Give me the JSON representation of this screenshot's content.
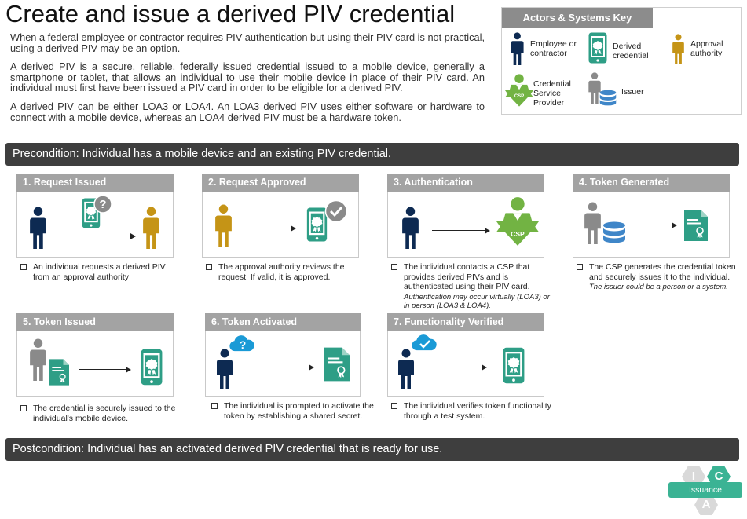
{
  "title": "Create and issue a derived PIV credential",
  "intro": {
    "p1": "When a federal employee or contractor requires PIV authentication but using their PIV card is not practical, using a derived PIV may be an option.",
    "p2": "A derived PIV is a secure, reliable, federally issued credential issued to a mobile device, generally a smartphone or tablet, that allows an individual to use their mobile device in place of their PIV card. An individual must first have been issued a PIV card in order to be eligible for a derived PIV.",
    "p3": "A derived PIV can be either LOA3 or LOA4. An LOA3 derived PIV uses either software or hardware to connect with a mobile device, whereas an LOA4 derived PIV must be a hardware token."
  },
  "key": {
    "title": "Actors & Systems Key",
    "employee": "Employee or contractor",
    "derived": "Derived credential",
    "approval": "Approval authority",
    "csp": "Credential Service Provider",
    "issuer": "Issuer",
    "csp_badge": "CSP"
  },
  "precondition": "Precondition: Individual has a mobile device and an existing PIV credential.",
  "postcondition": "Postcondition: Individual has an activated derived PIV credential that is ready for use.",
  "steps": [
    {
      "title": "1. Request Issued",
      "desc": "An individual requests a derived PIV from an approval authority"
    },
    {
      "title": "2. Request Approved",
      "desc": "The approval authority reviews the request. If valid, it is approved."
    },
    {
      "title": "3. Authentication",
      "desc": "The individual contacts a CSP that provides derived PIVs and is authenticated using their PIV card.",
      "note": "Authentication may occur virtually (LOA3) or in person (LOA3 & LOA4).",
      "badge": "CSP"
    },
    {
      "title": "4. Token Generated",
      "desc": "The CSP generates the credential token and securely issues it to the individual.",
      "note": "The issuer could be a person or a system."
    },
    {
      "title": "5. Token Issued",
      "desc": "The credential is securely issued to the individual's mobile device."
    },
    {
      "title": "6. Token Activated",
      "desc": "The individual is prompted to activate the token by establishing a shared secret."
    },
    {
      "title": "7. Functionality Verified",
      "desc": "The individual verifies token functionality through a test system."
    }
  ],
  "ica": {
    "i": "I",
    "c": "C",
    "a": "A",
    "label": "Issuance"
  },
  "colors": {
    "employee": "#0d2a52",
    "approval": "#c59416",
    "csp": "#72b343",
    "issuer": "#8a8a8a",
    "credential": "#2e9e86",
    "database": "#3f86c8",
    "header_bar": "#3e3e3e",
    "step_header": "#a3a3a3",
    "cloud": "#1a9ad6"
  },
  "icons": [
    "person-icon",
    "phone-credential-icon",
    "question-badge-icon",
    "check-badge-icon",
    "csp-icon",
    "database-icon",
    "document-credential-icon",
    "cloud-question-icon",
    "cloud-check-icon"
  ]
}
